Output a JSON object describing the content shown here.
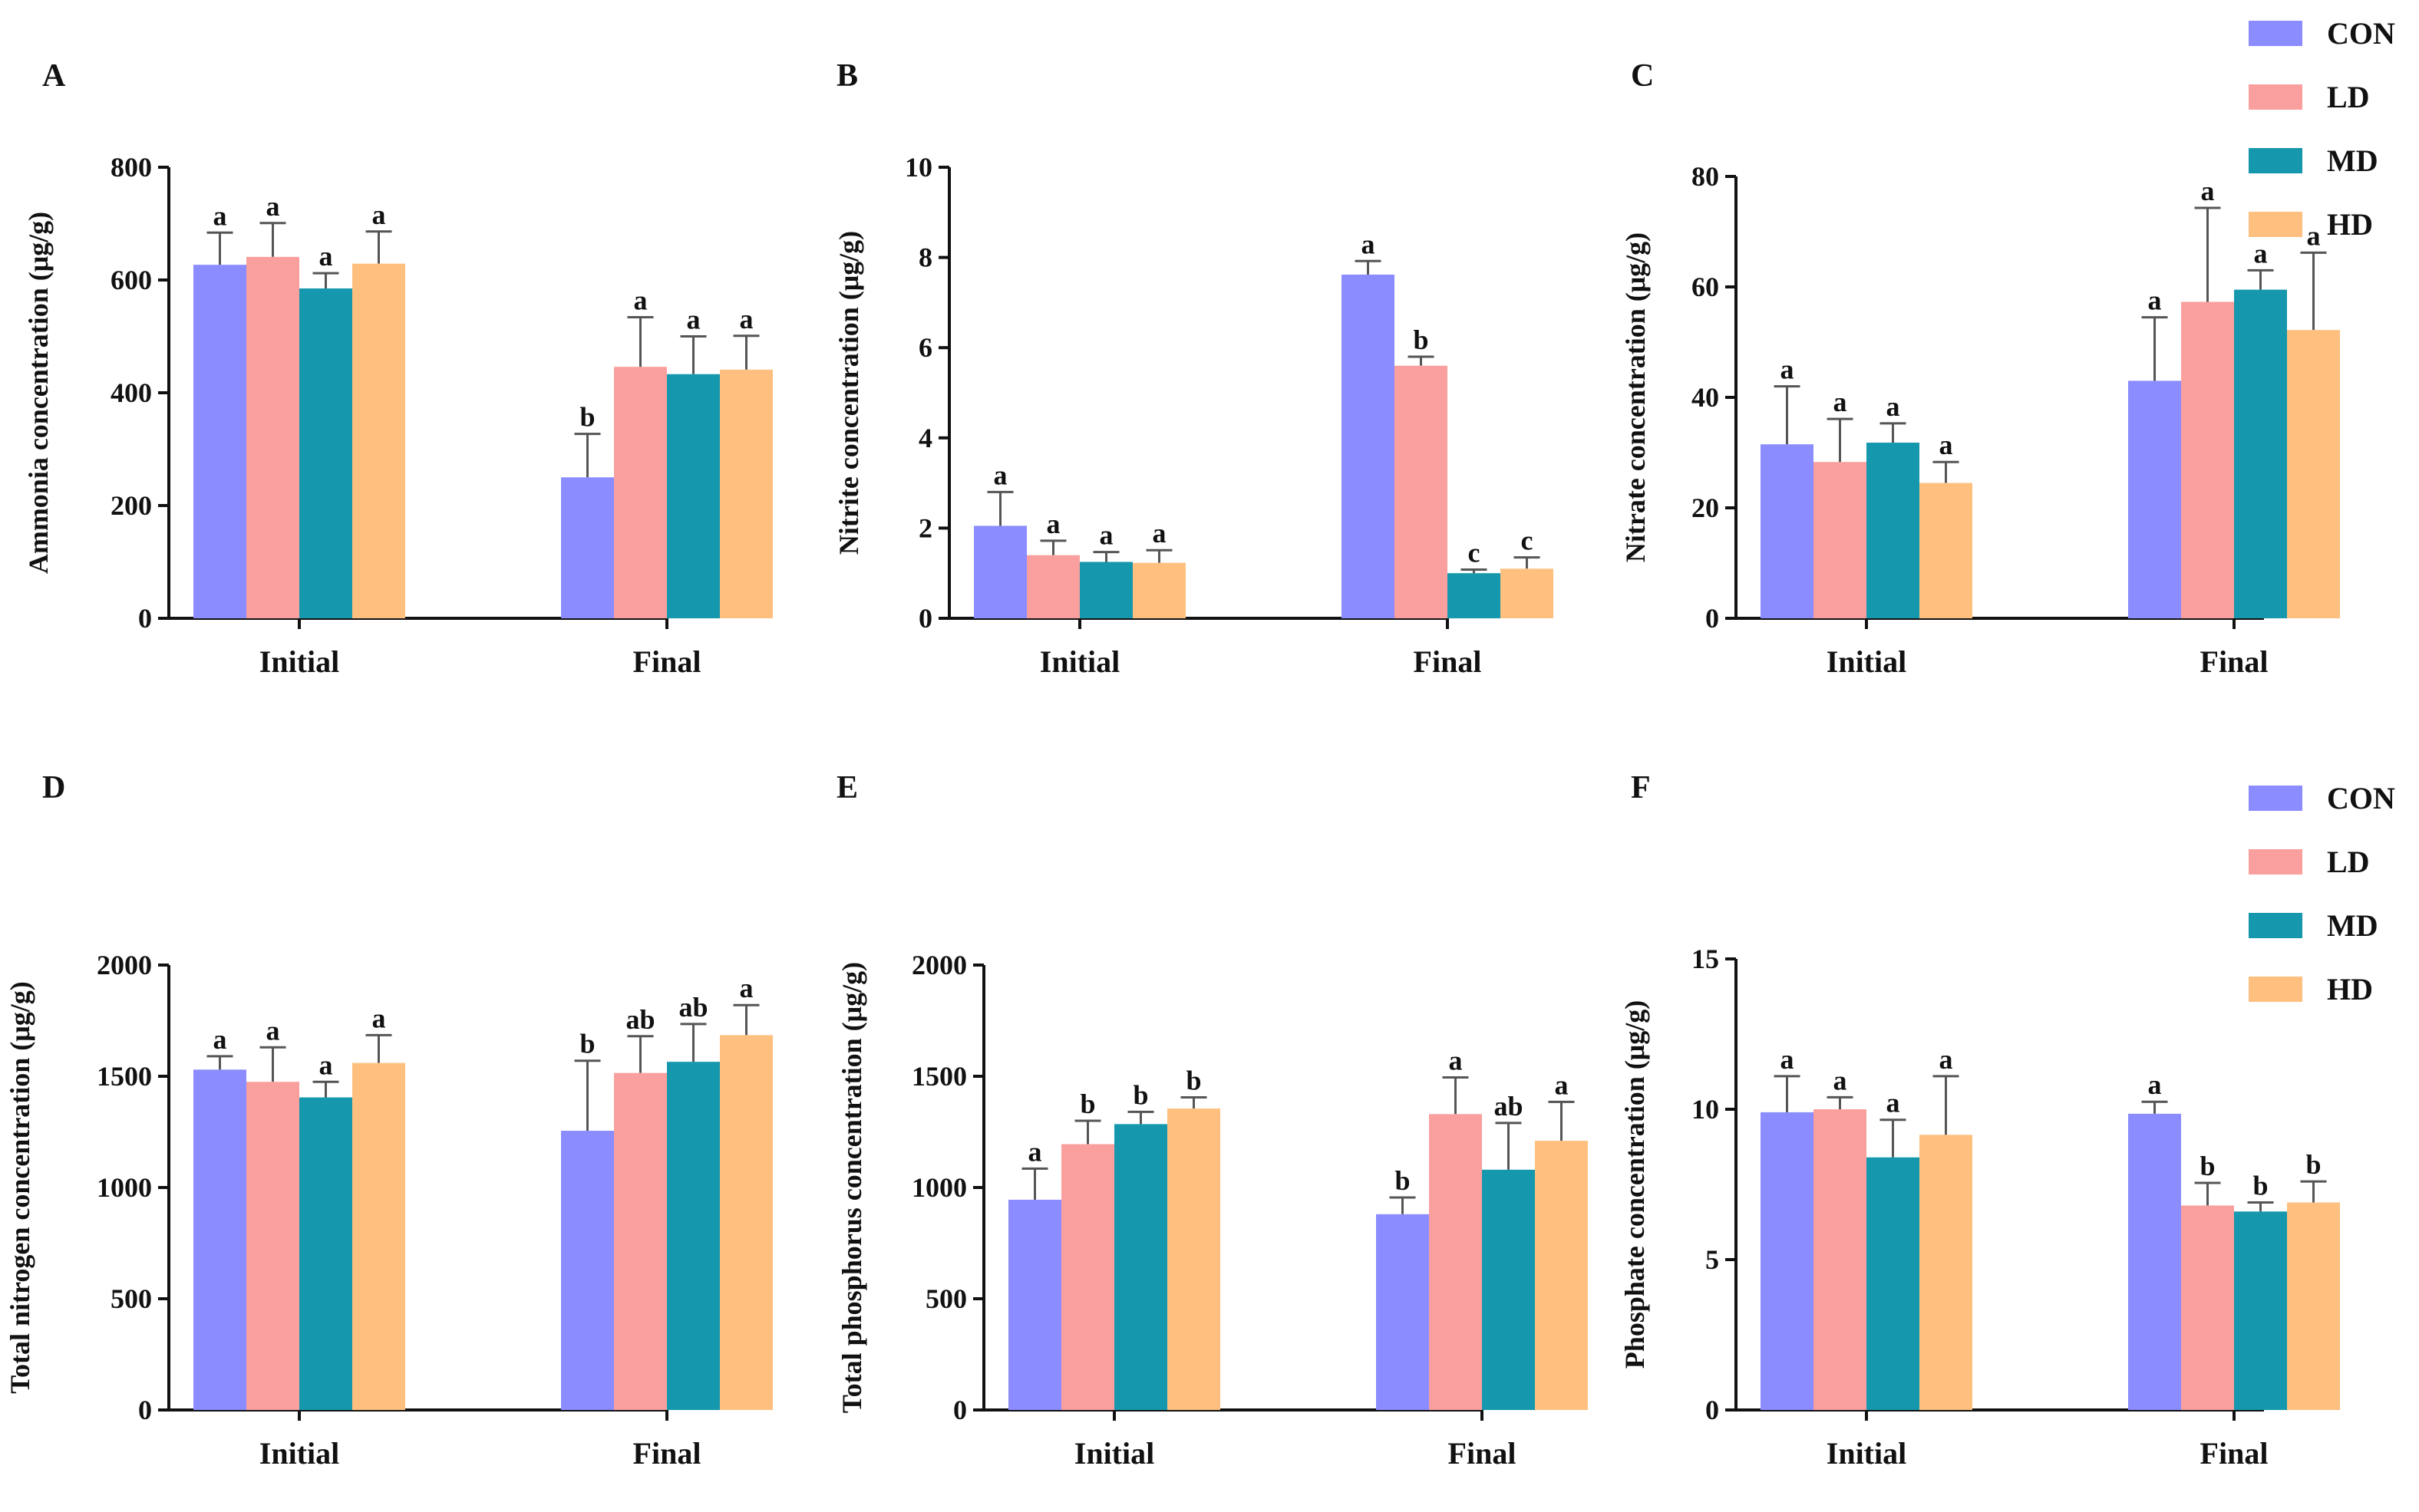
{
  "colors": {
    "CON": "#8b8cff",
    "LD": "#f9a09f",
    "MD": "#1597ad",
    "HD": "#ffc07f"
  },
  "legend": {
    "items": [
      "CON",
      "LD",
      "MD",
      "HD"
    ]
  },
  "chart_data": [
    {
      "panel": "A",
      "type": "bar",
      "ylabel": "Ammonia concentration (μg/g)",
      "ylim": [
        0,
        800
      ],
      "yticks": [
        0,
        200,
        400,
        600,
        800
      ],
      "categories": [
        "Initial",
        "Final"
      ],
      "series": [
        {
          "name": "CON",
          "values": [
            627,
            250
          ],
          "errors": [
            57,
            77
          ],
          "letters": [
            "a",
            "b"
          ]
        },
        {
          "name": "LD",
          "values": [
            641,
            446
          ],
          "errors": [
            60,
            88
          ],
          "letters": [
            "a",
            "a"
          ]
        },
        {
          "name": "MD",
          "values": [
            585,
            433
          ],
          "errors": [
            27,
            67
          ],
          "letters": [
            "a",
            "a"
          ]
        },
        {
          "name": "HD",
          "values": [
            629,
            441
          ],
          "errors": [
            57,
            60
          ],
          "letters": [
            "a",
            "a"
          ]
        }
      ]
    },
    {
      "panel": "B",
      "type": "bar",
      "ylabel": "Nitrite concentration (μg/g)",
      "ylim": [
        0,
        10
      ],
      "yticks": [
        0,
        2,
        4,
        6,
        8,
        10
      ],
      "categories": [
        "Initial",
        "Final"
      ],
      "series": [
        {
          "name": "CON",
          "values": [
            2.05,
            7.62
          ],
          "errors": [
            0.75,
            0.3
          ],
          "letters": [
            "a",
            "a"
          ]
        },
        {
          "name": "LD",
          "values": [
            1.4,
            5.6
          ],
          "errors": [
            0.32,
            0.2
          ],
          "letters": [
            "a",
            "b"
          ]
        },
        {
          "name": "MD",
          "values": [
            1.25,
            1.0
          ],
          "errors": [
            0.22,
            0.08
          ],
          "letters": [
            "a",
            "c"
          ]
        },
        {
          "name": "HD",
          "values": [
            1.23,
            1.1
          ],
          "errors": [
            0.28,
            0.25
          ],
          "letters": [
            "a",
            "c"
          ]
        }
      ]
    },
    {
      "panel": "C",
      "type": "bar",
      "ylabel": "Nitrate  concentration (μg/g)",
      "ylim": [
        0,
        80
      ],
      "yticks": [
        0,
        20,
        40,
        60,
        80
      ],
      "categories": [
        "Initial",
        "Final"
      ],
      "series": [
        {
          "name": "CON",
          "values": [
            31.5,
            43
          ],
          "errors": [
            10.5,
            11.5
          ],
          "letters": [
            "a",
            "a"
          ]
        },
        {
          "name": "LD",
          "values": [
            28.3,
            57.3
          ],
          "errors": [
            7.8,
            17
          ],
          "letters": [
            "a",
            "a"
          ]
        },
        {
          "name": "MD",
          "values": [
            31.8,
            59.5
          ],
          "errors": [
            3.5,
            3.5
          ],
          "letters": [
            "a",
            "a"
          ]
        },
        {
          "name": "HD",
          "values": [
            24.5,
            52.2
          ],
          "errors": [
            3.8,
            14
          ],
          "letters": [
            "a",
            "a"
          ]
        }
      ]
    },
    {
      "panel": "D",
      "type": "bar",
      "ylabel": "Total nitrogen  concentration (μg/g)",
      "ylim": [
        0,
        2000
      ],
      "yticks": [
        0,
        500,
        1000,
        1500,
        2000
      ],
      "categories": [
        "Initial",
        "Final"
      ],
      "series": [
        {
          "name": "CON",
          "values": [
            1530,
            1255
          ],
          "errors": [
            60,
            315
          ],
          "letters": [
            "a",
            "b"
          ]
        },
        {
          "name": "LD",
          "values": [
            1475,
            1515
          ],
          "errors": [
            155,
            165
          ],
          "letters": [
            "a",
            "ab"
          ]
        },
        {
          "name": "MD",
          "values": [
            1405,
            1565
          ],
          "errors": [
            70,
            170
          ],
          "letters": [
            "a",
            "ab"
          ]
        },
        {
          "name": "HD",
          "values": [
            1560,
            1685
          ],
          "errors": [
            125,
            135
          ],
          "letters": [
            "a",
            "a"
          ]
        }
      ]
    },
    {
      "panel": "E",
      "type": "bar",
      "ylabel": "Total phosphorus  concentration (μg/g)",
      "ylim": [
        0,
        2000
      ],
      "yticks": [
        0,
        500,
        1000,
        1500,
        2000
      ],
      "categories": [
        "Initial",
        "Final"
      ],
      "series": [
        {
          "name": "CON",
          "values": [
            945,
            880
          ],
          "errors": [
            140,
            75
          ],
          "letters": [
            "a",
            "b"
          ]
        },
        {
          "name": "LD",
          "values": [
            1195,
            1330
          ],
          "errors": [
            105,
            165
          ],
          "letters": [
            "b",
            "a"
          ]
        },
        {
          "name": "MD",
          "values": [
            1285,
            1080
          ],
          "errors": [
            55,
            210
          ],
          "letters": [
            "b",
            "ab"
          ]
        },
        {
          "name": "HD",
          "values": [
            1355,
            1210
          ],
          "errors": [
            50,
            175
          ],
          "letters": [
            "b",
            "a"
          ]
        }
      ]
    },
    {
      "panel": "F",
      "type": "bar",
      "ylabel": "Phosphate concentration (μg/g)",
      "ylim": [
        0,
        15
      ],
      "yticks": [
        0,
        5,
        10,
        15
      ],
      "categories": [
        "Initial",
        "Final"
      ],
      "series": [
        {
          "name": "CON",
          "values": [
            9.9,
            9.85
          ],
          "errors": [
            1.2,
            0.4
          ],
          "letters": [
            "a",
            "a"
          ]
        },
        {
          "name": "LD",
          "values": [
            10.0,
            6.8
          ],
          "errors": [
            0.4,
            0.75
          ],
          "letters": [
            "a",
            "b"
          ]
        },
        {
          "name": "MD",
          "values": [
            8.4,
            6.6
          ],
          "errors": [
            1.25,
            0.3
          ],
          "letters": [
            "a",
            "b"
          ]
        },
        {
          "name": "HD",
          "values": [
            9.15,
            6.9
          ],
          "errors": [
            1.95,
            0.7
          ],
          "letters": [
            "a",
            "b"
          ]
        }
      ]
    }
  ]
}
